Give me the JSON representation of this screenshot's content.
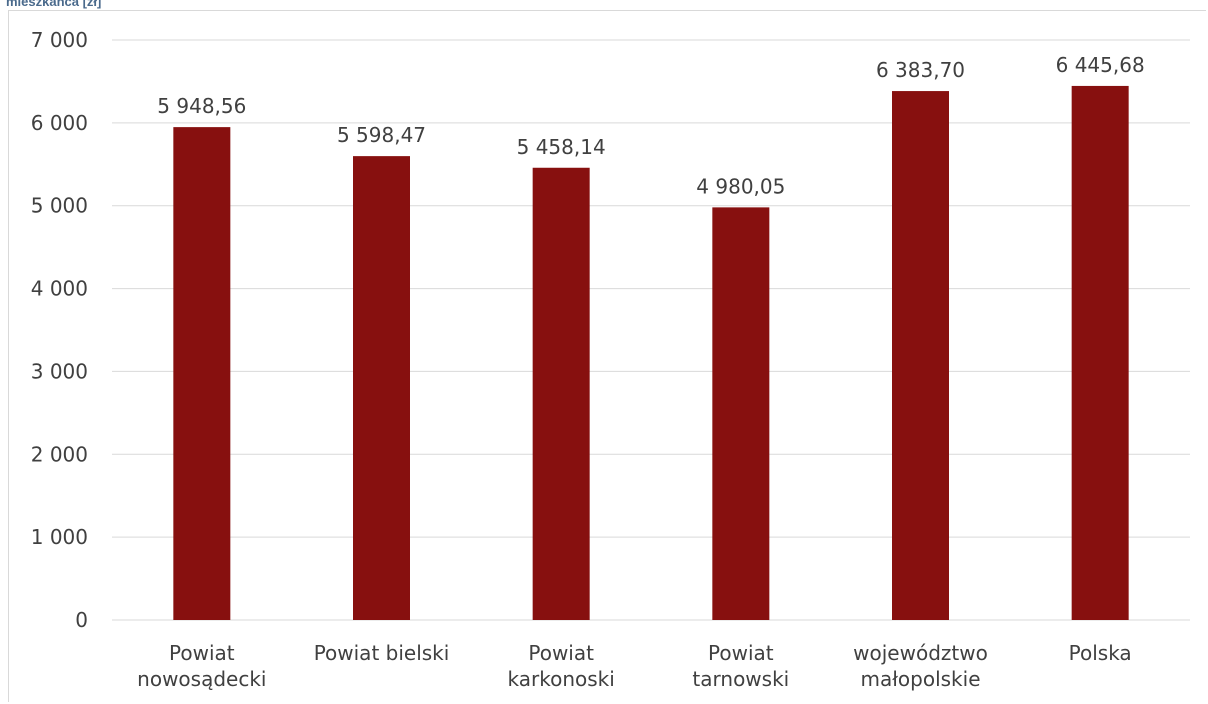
{
  "caption": "mieszkańca [zł]",
  "chart_data": {
    "type": "bar",
    "categories": [
      [
        "Powiat",
        "nowosądecki"
      ],
      [
        "Powiat bielski"
      ],
      [
        "Powiat",
        "karkonoski"
      ],
      [
        "Powiat",
        "tarnowski"
      ],
      [
        "województwo",
        "małopolskie"
      ],
      [
        "Polska"
      ]
    ],
    "values": [
      5948.56,
      5598.47,
      5458.14,
      4980.05,
      6383.7,
      6445.68
    ],
    "data_labels": [
      "5 948,56",
      "5 598,47",
      "5 458,14",
      "4 980,05",
      "6 383,70",
      "6 445,68"
    ],
    "ylim": [
      0,
      7000
    ],
    "yticks": [
      0,
      1000,
      2000,
      3000,
      4000,
      5000,
      6000,
      7000
    ],
    "ytick_labels": [
      "0",
      "1 000",
      "2 000",
      "3 000",
      "4 000",
      "5 000",
      "6 000",
      "7 000"
    ],
    "grid": true,
    "legend": "none",
    "bar_color": "#87100f",
    "grid_color": "#d9d9d9"
  }
}
